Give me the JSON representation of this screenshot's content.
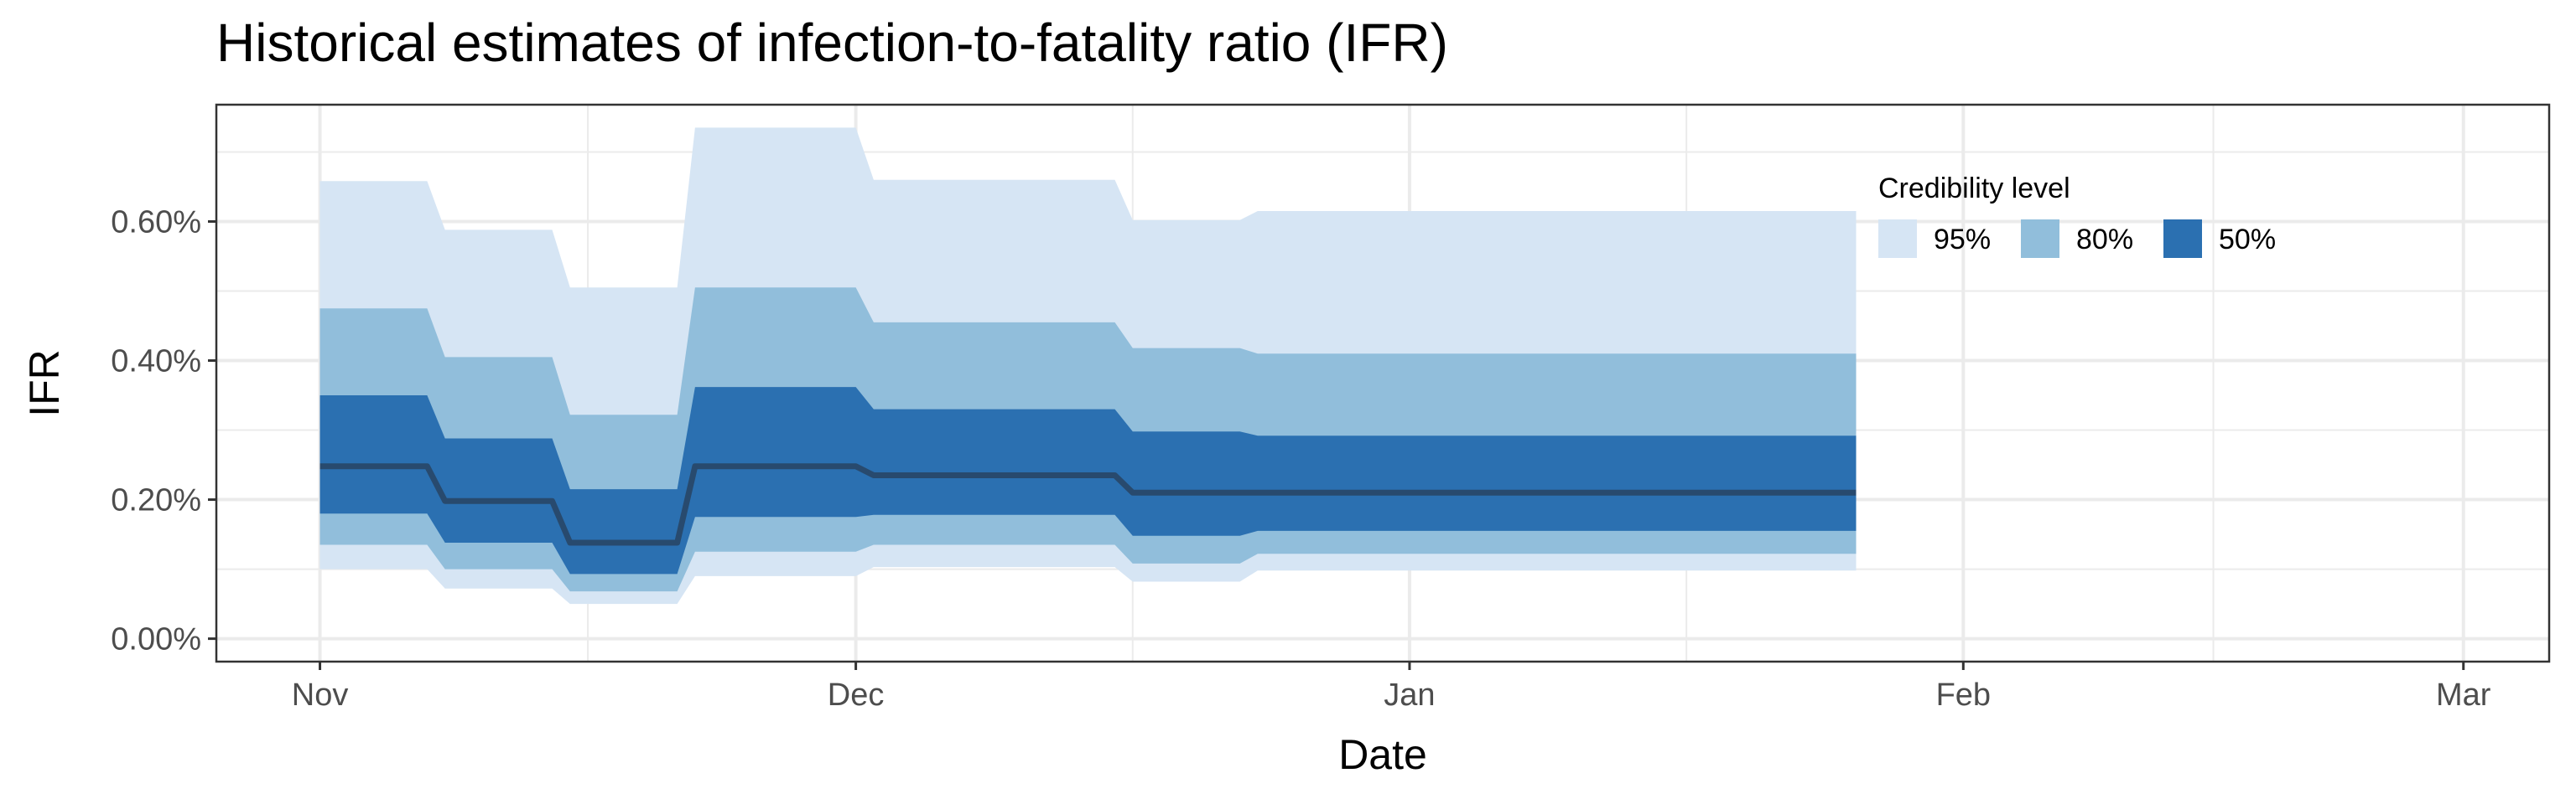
{
  "chart_data": {
    "type": "area",
    "title": "Historical estimates of infection-to-fatality ratio (IFR)",
    "xlabel": "Date",
    "ylabel": "IFR",
    "x_ticks": [
      {
        "label": "Nov",
        "day": 0
      },
      {
        "label": "Dec",
        "day": 30
      },
      {
        "label": "Jan",
        "day": 61
      },
      {
        "label": "Feb",
        "day": 92
      },
      {
        "label": "Mar",
        "day": 120
      }
    ],
    "x_minor_days": [
      15,
      45.5,
      76.5,
      106
    ],
    "xlim_days": [
      -5.8,
      124.8
    ],
    "y_ticks": [
      0,
      0.002,
      0.004,
      0.006
    ],
    "y_tick_labels": [
      "0.00%",
      "0.20%",
      "0.40%",
      "0.60%"
    ],
    "ylim": [
      -0.00033,
      0.00768
    ],
    "grid": true,
    "legend": {
      "title": "Credibility level",
      "position": "top-right (inside plot)",
      "items": [
        {
          "label": "95%",
          "color": "#d6e5f4"
        },
        {
          "label": "80%",
          "color": "#91bedb"
        },
        {
          "label": "50%",
          "color": "#2b70b1"
        }
      ]
    },
    "median_color": "#284a6e",
    "steps": [
      {
        "start": 0,
        "end": 6,
        "median": 0.00248,
        "lo50": 0.0018,
        "hi50": 0.0035,
        "lo80": 0.00135,
        "hi80": 0.00475,
        "lo95": 0.001,
        "hi95": 0.00658
      },
      {
        "start": 7,
        "end": 13,
        "median": 0.00198,
        "lo50": 0.00138,
        "hi50": 0.00288,
        "lo80": 0.001,
        "hi80": 0.00405,
        "lo95": 0.00072,
        "hi95": 0.00588
      },
      {
        "start": 14,
        "end": 20,
        "median": 0.00138,
        "lo50": 0.00093,
        "hi50": 0.00215,
        "lo80": 0.00068,
        "hi80": 0.00322,
        "lo95": 0.0005,
        "hi95": 0.00505
      },
      {
        "start": 21,
        "end": 30,
        "median": 0.00248,
        "lo50": 0.00175,
        "hi50": 0.00362,
        "lo80": 0.00125,
        "hi80": 0.00505,
        "lo95": 0.0009,
        "hi95": 0.00735
      },
      {
        "start": 31,
        "end": 44.5,
        "median": 0.00235,
        "lo50": 0.00178,
        "hi50": 0.0033,
        "lo80": 0.00135,
        "hi80": 0.00455,
        "lo95": 0.00103,
        "hi95": 0.0066
      },
      {
        "start": 45.5,
        "end": 51.5,
        "median": 0.0021,
        "lo50": 0.00148,
        "hi50": 0.00298,
        "lo80": 0.00108,
        "hi80": 0.00418,
        "lo95": 0.00082,
        "hi95": 0.00602
      },
      {
        "start": 52.5,
        "end": 86,
        "median": 0.0021,
        "lo50": 0.00155,
        "hi50": 0.00292,
        "lo80": 0.00122,
        "hi80": 0.0041,
        "lo95": 0.00098,
        "hi95": 0.00615
      }
    ]
  }
}
